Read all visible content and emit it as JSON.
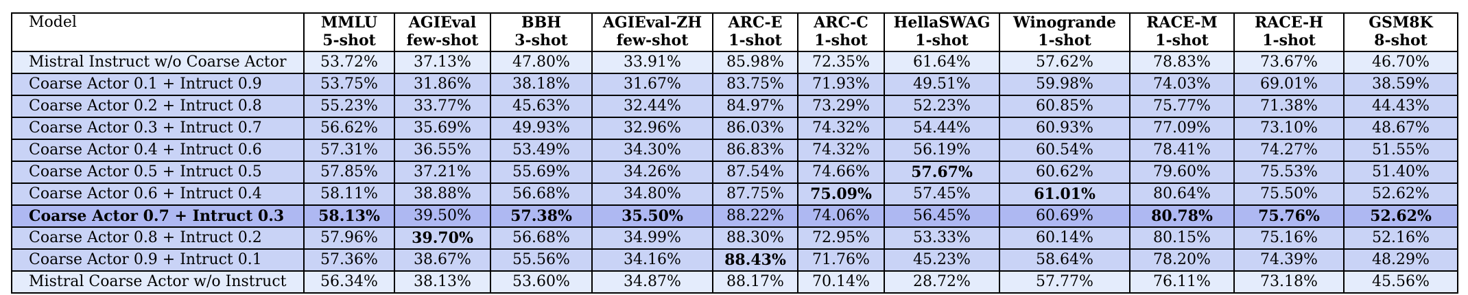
{
  "table": {
    "header_model": "Model",
    "columns": [
      {
        "name": "MMLU",
        "setting": "5-shot"
      },
      {
        "name": "AGIEval",
        "setting": "few-shot"
      },
      {
        "name": "BBH",
        "setting": "3-shot"
      },
      {
        "name": "AGIEval-ZH",
        "setting": "few-shot"
      },
      {
        "name": "ARC-E",
        "setting": "1-shot"
      },
      {
        "name": "ARC-C",
        "setting": "1-shot"
      },
      {
        "name": "HellaSWAG",
        "setting": "1-shot"
      },
      {
        "name": "Winogrande",
        "setting": "1-shot"
      },
      {
        "name": "RACE-M",
        "setting": "1-shot"
      },
      {
        "name": "RACE-H",
        "setting": "1-shot"
      },
      {
        "name": "GSM8K",
        "setting": "8-shot"
      }
    ],
    "rows": [
      {
        "model": "Mistral Instruct w/o Coarse Actor",
        "bg": "#e4ecfc",
        "bold_model": false,
        "values": [
          "53.72%",
          "37.13%",
          "47.80%",
          "33.91%",
          "85.98%",
          "72.35%",
          "61.64%",
          "57.62%",
          "78.83%",
          "73.67%",
          "46.70%"
        ],
        "bold": []
      },
      {
        "model": "Coarse Actor 0.1 + Intruct 0.9",
        "bg": "#c9d3f6",
        "bold_model": false,
        "values": [
          "53.75%",
          "31.86%",
          "38.18%",
          "31.67%",
          "83.75%",
          "71.93%",
          "49.51%",
          "59.98%",
          "74.03%",
          "69.01%",
          "38.59%"
        ],
        "bold": []
      },
      {
        "model": "Coarse Actor 0.2 + Intruct 0.8",
        "bg": "#c9d3f6",
        "bold_model": false,
        "values": [
          "55.23%",
          "33.77%",
          "45.63%",
          "32.44%",
          "84.97%",
          "73.29%",
          "52.23%",
          "60.85%",
          "75.77%",
          "71.38%",
          "44.43%"
        ],
        "bold": []
      },
      {
        "model": "Coarse Actor 0.3 + Intruct 0.7",
        "bg": "#c9d3f6",
        "bold_model": false,
        "values": [
          "56.62%",
          "35.69%",
          "49.93%",
          "32.96%",
          "86.03%",
          "74.32%",
          "54.44%",
          "60.93%",
          "77.09%",
          "73.10%",
          "48.67%"
        ],
        "bold": []
      },
      {
        "model": "Coarse Actor 0.4 + Intruct 0.6",
        "bg": "#c9d3f6",
        "bold_model": false,
        "values": [
          "57.31%",
          "36.55%",
          "53.49%",
          "34.30%",
          "86.83%",
          "74.32%",
          "56.19%",
          "60.54%",
          "78.41%",
          "74.27%",
          "51.55%"
        ],
        "bold": []
      },
      {
        "model": "Coarse Actor 0.5 + Intruct 0.5",
        "bg": "#c9d3f6",
        "bold_model": false,
        "values": [
          "57.85%",
          "37.21%",
          "55.69%",
          "34.26%",
          "87.54%",
          "74.66%",
          "57.67%",
          "60.62%",
          "79.60%",
          "75.53%",
          "51.40%"
        ],
        "bold": [
          6
        ]
      },
      {
        "model": "Coarse Actor 0.6 + Intruct 0.4",
        "bg": "#c9d3f6",
        "bold_model": false,
        "values": [
          "58.11%",
          "38.88%",
          "56.68%",
          "34.80%",
          "87.75%",
          "75.09%",
          "57.45%",
          "61.01%",
          "80.64%",
          "75.50%",
          "52.62%"
        ],
        "bold": [
          5,
          7
        ]
      },
      {
        "model": "Coarse Actor 0.7 + Intruct 0.3",
        "bg": "#aeb8f2",
        "bold_model": true,
        "values": [
          "58.13%",
          "39.50%",
          "57.38%",
          "35.50%",
          "88.22%",
          "74.06%",
          "56.45%",
          "60.69%",
          "80.78%",
          "75.76%",
          "52.62%"
        ],
        "bold": [
          0,
          2,
          3,
          8,
          9,
          10
        ]
      },
      {
        "model": "Coarse Actor 0.8 + Intruct 0.2",
        "bg": "#c9d3f6",
        "bold_model": false,
        "values": [
          "57.96%",
          "39.70%",
          "56.68%",
          "34.99%",
          "88.30%",
          "72.95%",
          "53.33%",
          "60.14%",
          "80.15%",
          "75.16%",
          "52.16%"
        ],
        "bold": [
          1
        ]
      },
      {
        "model": "Coarse Actor 0.9 + Intruct 0.1",
        "bg": "#c9d3f6",
        "bold_model": false,
        "values": [
          "57.36%",
          "38.67%",
          "55.56%",
          "34.16%",
          "88.43%",
          "71.76%",
          "45.23%",
          "58.64%",
          "78.20%",
          "74.39%",
          "48.29%"
        ],
        "bold": [
          4
        ]
      },
      {
        "model": "Mistral Coarse Actor w/o Instruct",
        "bg": "#e4ecfc",
        "bold_model": false,
        "values": [
          "56.34%",
          "38.13%",
          "53.60%",
          "34.87%",
          "88.17%",
          "70.14%",
          "28.72%",
          "57.77%",
          "76.11%",
          "73.18%",
          "45.56%"
        ],
        "bold": []
      }
    ]
  }
}
